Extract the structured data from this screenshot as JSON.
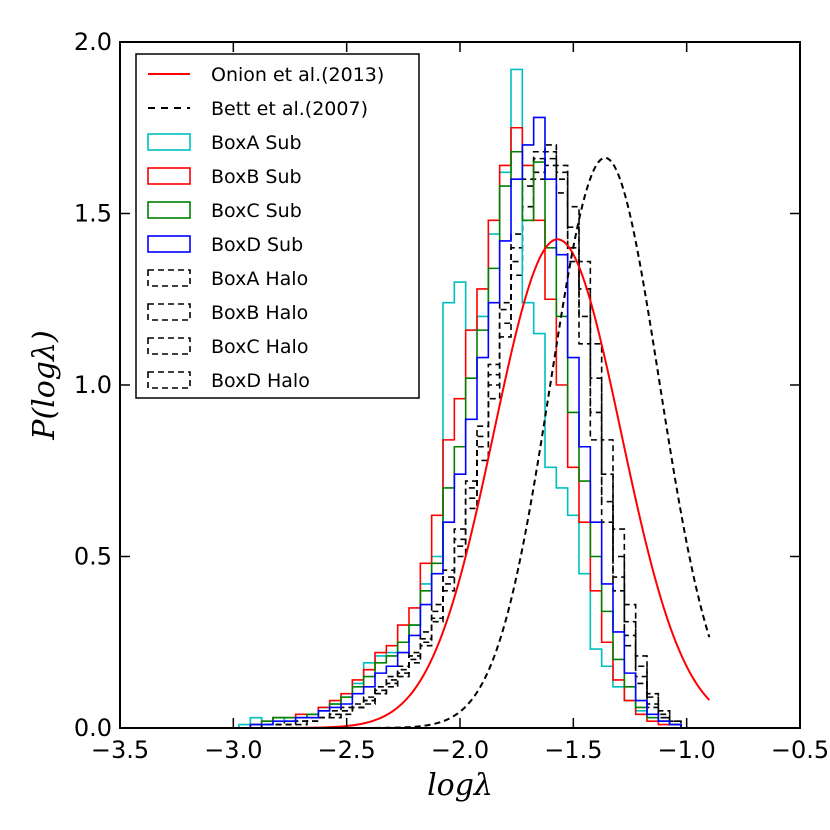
{
  "chart_data": {
    "type": "line",
    "xlabel": "logλ",
    "ylabel": "P(logλ)",
    "xlim": [
      -3.5,
      -0.5
    ],
    "ylim": [
      0.0,
      2.0
    ],
    "xticks": [
      -3.5,
      -3.0,
      -2.5,
      -2.0,
      -1.5,
      -1.0,
      -0.5
    ],
    "xtick_labels": [
      "−3.5",
      "−3.0",
      "−2.5",
      "−2.0",
      "−1.5",
      "−1.0",
      "−0.5"
    ],
    "yticks": [
      0.0,
      0.5,
      1.0,
      1.5,
      2.0
    ],
    "ytick_labels": [
      "0.0",
      "0.5",
      "1.0",
      "1.5",
      "2.0"
    ],
    "legend_position": "top-left",
    "series": [
      {
        "name": "Onion et al.(2013)",
        "kind": "curve",
        "color": "#ff0000",
        "style": "solid",
        "mu": -1.57,
        "sigma": 0.28
      },
      {
        "name": "Bett et al.(2007)",
        "kind": "curve",
        "color": "#000000",
        "style": "dashed",
        "mu": -1.36,
        "sigma": 0.24
      },
      {
        "name": "BoxA Sub",
        "kind": "hist",
        "color": "#00bfbf",
        "style": "solid",
        "x0": -2.975,
        "bin": 0.05,
        "values": [
          0.01,
          0.03,
          0.01,
          0.03,
          0.02,
          0.03,
          0.04,
          0.06,
          0.07,
          0.09,
          0.13,
          0.19,
          0.21,
          0.22,
          0.25,
          0.3,
          0.42,
          0.5,
          1.24,
          1.3,
          1.16,
          1.2,
          1.44,
          1.62,
          1.92,
          1.24,
          1.15,
          0.76,
          0.7,
          0.62,
          0.45,
          0.23,
          0.18,
          0.12,
          0.08,
          0.05,
          0.03,
          0.02,
          0.01
        ]
      },
      {
        "name": "BoxB Sub",
        "kind": "hist",
        "color": "#ff0000",
        "style": "solid",
        "x0": -2.975,
        "bin": 0.05,
        "values": [
          0.0,
          0.01,
          0.02,
          0.03,
          0.03,
          0.04,
          0.04,
          0.06,
          0.08,
          0.1,
          0.14,
          0.17,
          0.22,
          0.24,
          0.3,
          0.35,
          0.48,
          0.62,
          0.84,
          0.96,
          1.16,
          1.28,
          1.48,
          1.64,
          1.75,
          1.64,
          1.48,
          1.25,
          1.0,
          0.76,
          0.6,
          0.4,
          0.25,
          0.14,
          0.08,
          0.04,
          0.02,
          0.01,
          0.01
        ]
      },
      {
        "name": "BoxC Sub",
        "kind": "hist",
        "color": "#008000",
        "style": "solid",
        "x0": -2.975,
        "bin": 0.05,
        "values": [
          0.0,
          0.01,
          0.02,
          0.03,
          0.03,
          0.03,
          0.04,
          0.05,
          0.07,
          0.09,
          0.12,
          0.15,
          0.19,
          0.21,
          0.25,
          0.3,
          0.4,
          0.48,
          0.7,
          0.82,
          1.02,
          1.16,
          1.34,
          1.58,
          1.68,
          1.48,
          1.65,
          1.4,
          1.2,
          0.92,
          0.72,
          0.5,
          0.34,
          0.2,
          0.12,
          0.06,
          0.03,
          0.02,
          0.01
        ]
      },
      {
        "name": "BoxD Sub",
        "kind": "hist",
        "color": "#0000ff",
        "style": "solid",
        "x0": -2.975,
        "bin": 0.05,
        "values": [
          0.0,
          0.01,
          0.01,
          0.02,
          0.02,
          0.03,
          0.03,
          0.05,
          0.06,
          0.07,
          0.1,
          0.12,
          0.16,
          0.18,
          0.22,
          0.27,
          0.36,
          0.45,
          0.6,
          0.74,
          0.9,
          1.08,
          1.24,
          1.42,
          1.6,
          1.7,
          1.78,
          1.6,
          1.38,
          1.08,
          0.82,
          0.6,
          0.42,
          0.28,
          0.16,
          0.08,
          0.04,
          0.02,
          0.01
        ]
      },
      {
        "name": "BoxA Halo",
        "kind": "hist",
        "color": "#000000",
        "style": "dashed",
        "x0": -2.975,
        "bin": 0.05,
        "values": [
          0.0,
          0.01,
          0.01,
          0.01,
          0.02,
          0.02,
          0.03,
          0.03,
          0.05,
          0.06,
          0.07,
          0.09,
          0.12,
          0.15,
          0.18,
          0.22,
          0.28,
          0.36,
          0.46,
          0.58,
          0.72,
          0.88,
          1.06,
          1.24,
          1.44,
          1.6,
          1.68,
          1.7,
          1.56,
          1.36,
          1.12,
          0.84,
          0.6,
          0.4,
          0.24,
          0.13,
          0.06,
          0.03,
          0.01
        ]
      },
      {
        "name": "BoxB Halo",
        "kind": "hist",
        "color": "#000000",
        "style": "dashed",
        "x0": -2.975,
        "bin": 0.05,
        "values": [
          0.0,
          0.0,
          0.01,
          0.01,
          0.01,
          0.02,
          0.02,
          0.03,
          0.04,
          0.05,
          0.06,
          0.08,
          0.11,
          0.14,
          0.17,
          0.21,
          0.26,
          0.34,
          0.44,
          0.55,
          0.7,
          0.85,
          1.03,
          1.22,
          1.4,
          1.58,
          1.66,
          1.64,
          1.6,
          1.4,
          1.2,
          0.92,
          0.66,
          0.44,
          0.27,
          0.15,
          0.07,
          0.03,
          0.01
        ]
      },
      {
        "name": "BoxC Halo",
        "kind": "hist",
        "color": "#000000",
        "style": "dashed",
        "x0": -2.975,
        "bin": 0.05,
        "values": [
          0.0,
          0.0,
          0.01,
          0.01,
          0.01,
          0.02,
          0.02,
          0.03,
          0.04,
          0.05,
          0.06,
          0.08,
          0.1,
          0.13,
          0.16,
          0.2,
          0.25,
          0.32,
          0.42,
          0.53,
          0.67,
          0.82,
          1.0,
          1.18,
          1.36,
          1.52,
          1.62,
          1.68,
          1.62,
          1.46,
          1.28,
          1.02,
          0.74,
          0.5,
          0.31,
          0.18,
          0.09,
          0.04,
          0.02
        ]
      },
      {
        "name": "BoxD Halo",
        "kind": "hist",
        "color": "#000000",
        "style": "dashed",
        "x0": -2.975,
        "bin": 0.05,
        "values": [
          0.0,
          0.0,
          0.01,
          0.01,
          0.01,
          0.01,
          0.02,
          0.03,
          0.03,
          0.04,
          0.06,
          0.07,
          0.1,
          0.12,
          0.15,
          0.19,
          0.24,
          0.31,
          0.4,
          0.5,
          0.64,
          0.78,
          0.96,
          1.14,
          1.32,
          1.48,
          1.6,
          1.66,
          1.64,
          1.52,
          1.36,
          1.12,
          0.84,
          0.58,
          0.36,
          0.21,
          0.1,
          0.05,
          0.02
        ]
      }
    ]
  }
}
